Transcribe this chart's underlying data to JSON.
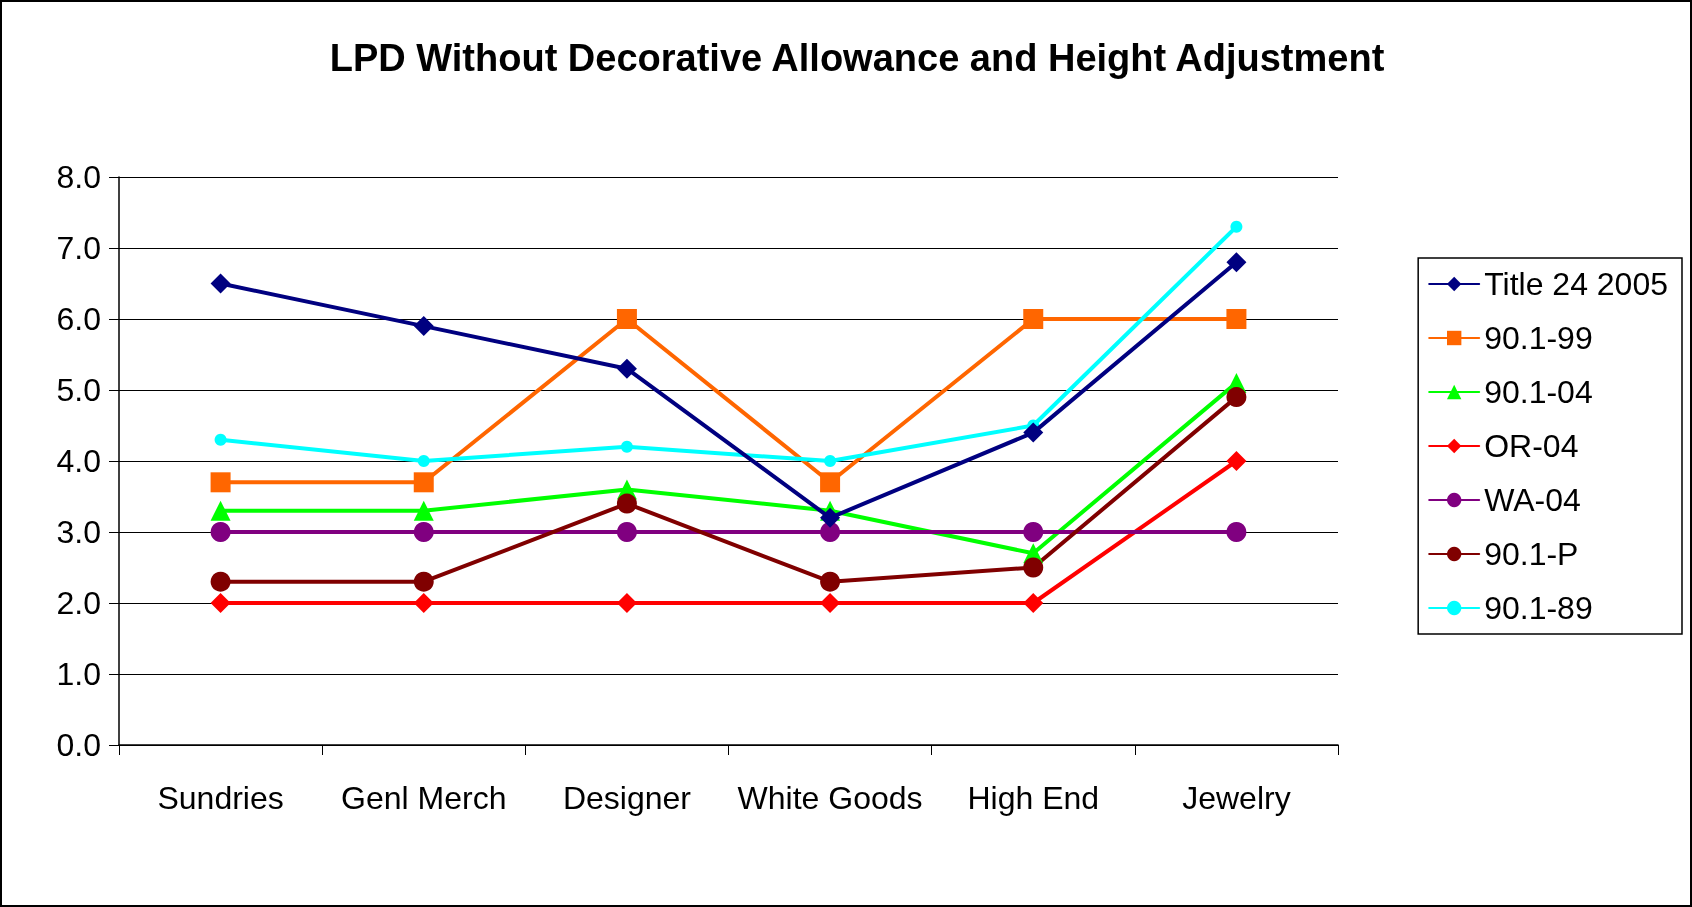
{
  "chart_data": {
    "type": "line",
    "title": "LPD Without Decorative Allowance and Height Adjustment",
    "categories": [
      "Sundries",
      "Genl Merch",
      "Designer",
      "White Goods",
      "High End",
      "Jewelry"
    ],
    "series": [
      {
        "name": "Title 24 2005",
        "color": "#000080",
        "marker": "diamond",
        "values": [
          6.5,
          5.9,
          5.3,
          3.2,
          4.4,
          6.8
        ]
      },
      {
        "name": "90.1-99",
        "color": "#ff6600",
        "marker": "square",
        "values": [
          3.7,
          3.7,
          6.0,
          3.7,
          6.0,
          6.0
        ]
      },
      {
        "name": "90.1-04",
        "color": "#00ff00",
        "marker": "triangle",
        "values": [
          3.3,
          3.3,
          3.6,
          3.3,
          2.7,
          5.1
        ]
      },
      {
        "name": "OR-04",
        "color": "#ff0000",
        "marker": "diamond",
        "values": [
          2.0,
          2.0,
          2.0,
          2.0,
          2.0,
          4.0
        ]
      },
      {
        "name": "WA-04",
        "color": "#800080",
        "marker": "circle",
        "values": [
          3.0,
          3.0,
          3.0,
          3.0,
          3.0,
          3.0
        ]
      },
      {
        "name": "90.1-P",
        "color": "#800000",
        "marker": "circle",
        "values": [
          2.3,
          2.3,
          3.4,
          2.3,
          2.5,
          4.9
        ]
      },
      {
        "name": "90.1-89",
        "color": "#00ffff",
        "marker": "circle",
        "values": [
          4.3,
          4.0,
          4.2,
          4.0,
          4.5,
          7.3
        ]
      }
    ],
    "ylim": [
      0,
      8
    ],
    "yticks": [
      {
        "value": 0,
        "label": "0.0"
      },
      {
        "value": 1,
        "label": "1.0"
      },
      {
        "value": 2,
        "label": "2.0"
      },
      {
        "value": 3,
        "label": "3.0"
      },
      {
        "value": 4,
        "label": "4.0"
      },
      {
        "value": 5,
        "label": "5.0"
      },
      {
        "value": 6,
        "label": "6.0"
      },
      {
        "value": 7,
        "label": "7.0"
      },
      {
        "value": 8,
        "label": "8.0"
      }
    ],
    "grid": "y",
    "legend": "right",
    "line_style": "solid"
  }
}
